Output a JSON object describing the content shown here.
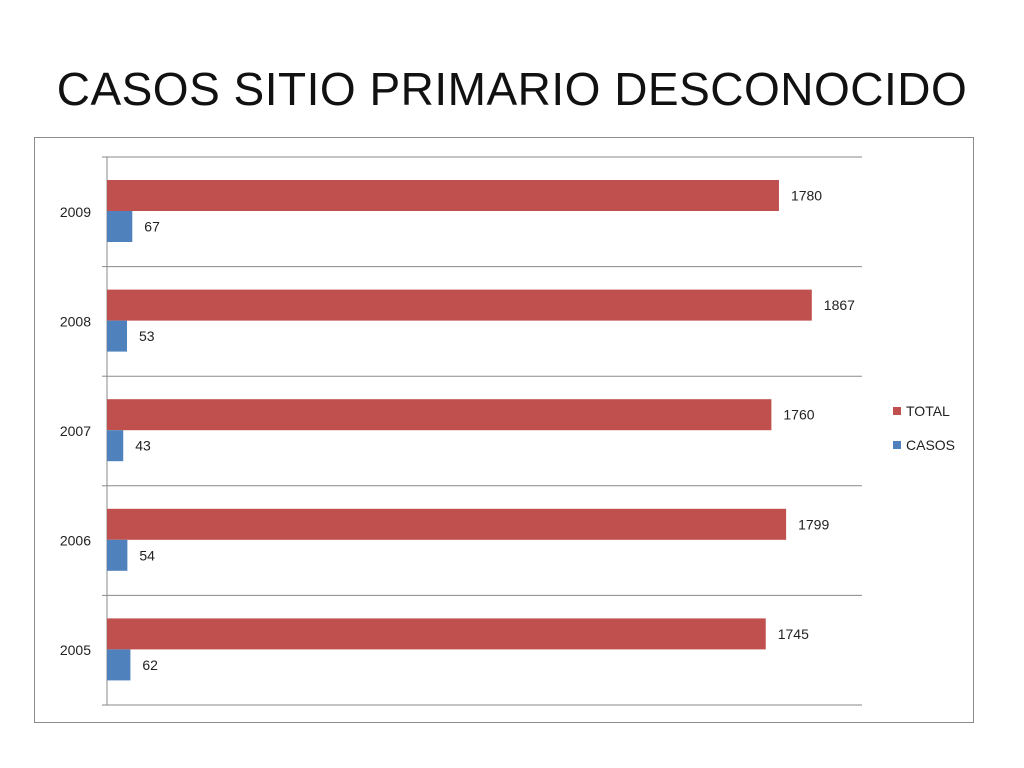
{
  "slide": {
    "title": "CASOS SITIO PRIMARIO DESCONOCIDO"
  },
  "chart_data": {
    "type": "bar",
    "orientation": "horizontal",
    "title": "",
    "xlabel": "",
    "ylabel": "",
    "categories": [
      "2009",
      "2008",
      "2007",
      "2006",
      "2005"
    ],
    "series": [
      {
        "name": "TOTAL",
        "color": "#c0504d",
        "values": [
          1780,
          1867,
          1760,
          1799,
          1745
        ]
      },
      {
        "name": "CASOS",
        "color": "#4f81bd",
        "values": [
          67,
          53,
          43,
          54,
          62
        ]
      }
    ],
    "xlim": [
      0,
      2000
    ],
    "grid": true,
    "legend_position": "right",
    "data_labels": true
  }
}
